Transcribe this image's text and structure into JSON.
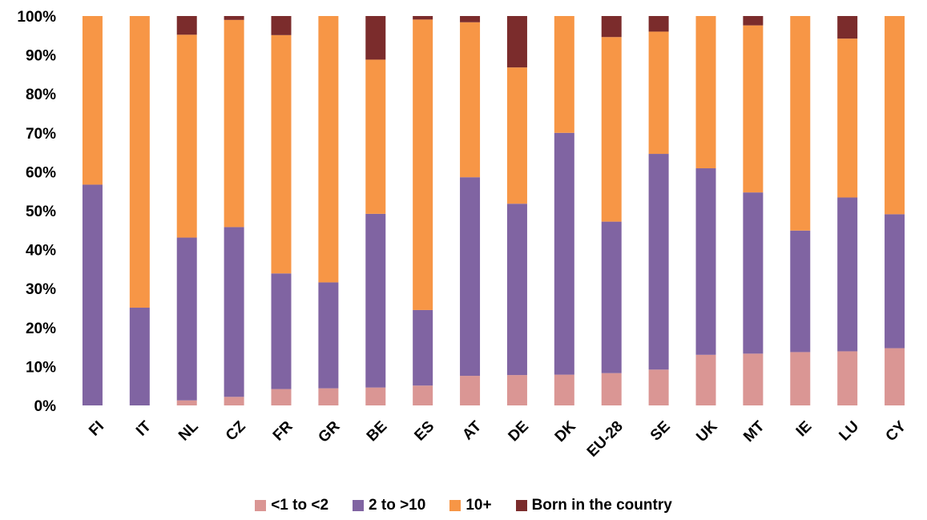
{
  "chart_data": {
    "type": "bar",
    "stacked": true,
    "categories": [
      "FI",
      "IT",
      "NL",
      "CZ",
      "FR",
      "GR",
      "BE",
      "ES",
      "AT",
      "DE",
      "DK",
      "EU-28",
      "SE",
      "UK",
      "MT",
      "IE",
      "LU",
      "CY"
    ],
    "series": [
      {
        "name": "<1 to <2",
        "color": "#da9694",
        "values": [
          0,
          0,
          1.3,
          2.2,
          4.2,
          4.4,
          4.6,
          5.1,
          7.6,
          7.8,
          7.9,
          8.3,
          9.2,
          13.0,
          13.3,
          13.7,
          13.9,
          14.7
        ]
      },
      {
        "name": "2 to >10",
        "color": "#8064a2",
        "values": [
          56.7,
          25.1,
          41.8,
          43.6,
          29.7,
          27.2,
          44.6,
          19.4,
          51.0,
          44.0,
          62.1,
          38.9,
          55.4,
          47.9,
          41.4,
          31.2,
          39.5,
          34.4
        ]
      },
      {
        "name": "10+",
        "color": "#f79646",
        "values": [
          43.3,
          74.9,
          52.1,
          53.2,
          61.2,
          68.4,
          39.6,
          74.6,
          39.8,
          35.0,
          30.0,
          47.4,
          31.4,
          39.1,
          42.9,
          55.1,
          40.8,
          50.9
        ]
      },
      {
        "name": "Born in the country",
        "color": "#7b2c2c",
        "values": [
          0,
          0,
          4.8,
          1.0,
          4.9,
          0,
          11.2,
          0.9,
          1.6,
          13.2,
          0,
          5.4,
          4.0,
          0,
          2.4,
          0,
          5.8,
          0
        ]
      }
    ],
    "yticks": [
      "0%",
      "10%",
      "20%",
      "30%",
      "40%",
      "50%",
      "60%",
      "70%",
      "80%",
      "90%",
      "100%"
    ],
    "ylim": [
      0,
      100
    ],
    "grid": false,
    "legend_position": "bottom",
    "title": "",
    "xlabel": "",
    "ylabel": ""
  }
}
